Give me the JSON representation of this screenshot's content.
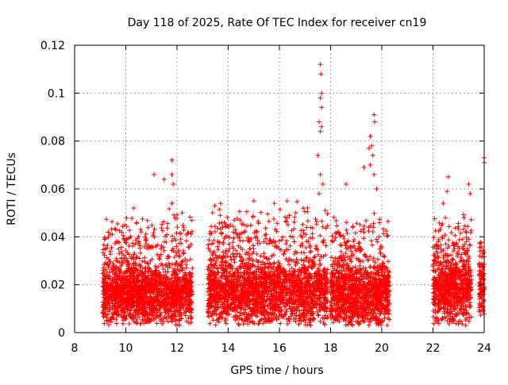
{
  "chart_data": {
    "type": "scatter",
    "title": "Day 118 of 2025, Rate Of TEC Index for receiver cn19",
    "xlabel": "GPS time / hours",
    "ylabel": "ROTI / TECUs",
    "xlim": [
      8,
      24
    ],
    "ylim": [
      0,
      0.12
    ],
    "xticks": [
      8,
      10,
      12,
      14,
      16,
      18,
      20,
      22,
      24
    ],
    "xtick_labels": [
      "8",
      "10",
      "12",
      "14",
      "16",
      "18",
      "20",
      "22",
      "24"
    ],
    "yticks": [
      0,
      0.02,
      0.04,
      0.06,
      0.08,
      0.1,
      0.12
    ],
    "ytick_labels": [
      "0",
      "0.02",
      "0.04",
      "0.06",
      "0.08",
      "0.1",
      "0.12"
    ],
    "grid": true,
    "marker": "+",
    "color": "#ff0000",
    "segments": [
      {
        "start": 9.1,
        "end": 12.6,
        "base": 0.016,
        "spread": 0.012,
        "peak": 0.052
      },
      {
        "start": 13.2,
        "end": 17.9,
        "base": 0.017,
        "spread": 0.013,
        "peak": 0.055
      },
      {
        "start": 18.0,
        "end": 20.3,
        "base": 0.016,
        "spread": 0.013,
        "peak": 0.05
      },
      {
        "start": 22.0,
        "end": 23.5,
        "base": 0.018,
        "spread": 0.014,
        "peak": 0.052
      },
      {
        "start": 23.8,
        "end": 24.0,
        "base": 0.018,
        "spread": 0.012,
        "peak": 0.045
      }
    ],
    "highlights": [
      {
        "x": 10.3,
        "y": 0.052
      },
      {
        "x": 10.6,
        "y": 0.042
      },
      {
        "x": 11.1,
        "y": 0.066
      },
      {
        "x": 11.5,
        "y": 0.064
      },
      {
        "x": 11.8,
        "y": 0.072
      },
      {
        "x": 11.8,
        "y": 0.066
      },
      {
        "x": 11.85,
        "y": 0.062
      },
      {
        "x": 11.8,
        "y": 0.054
      },
      {
        "x": 12.2,
        "y": 0.05
      },
      {
        "x": 13.7,
        "y": 0.054
      },
      {
        "x": 15.0,
        "y": 0.055
      },
      {
        "x": 15.8,
        "y": 0.054
      },
      {
        "x": 16.3,
        "y": 0.055
      },
      {
        "x": 17.6,
        "y": 0.112
      },
      {
        "x": 17.62,
        "y": 0.108
      },
      {
        "x": 17.65,
        "y": 0.1
      },
      {
        "x": 17.6,
        "y": 0.098
      },
      {
        "x": 17.65,
        "y": 0.094
      },
      {
        "x": 17.55,
        "y": 0.088
      },
      {
        "x": 17.65,
        "y": 0.086
      },
      {
        "x": 17.6,
        "y": 0.084
      },
      {
        "x": 17.5,
        "y": 0.074
      },
      {
        "x": 17.6,
        "y": 0.066
      },
      {
        "x": 17.7,
        "y": 0.062
      },
      {
        "x": 17.55,
        "y": 0.058
      },
      {
        "x": 18.6,
        "y": 0.062
      },
      {
        "x": 19.3,
        "y": 0.069
      },
      {
        "x": 19.5,
        "y": 0.077
      },
      {
        "x": 19.55,
        "y": 0.082
      },
      {
        "x": 19.6,
        "y": 0.078
      },
      {
        "x": 19.65,
        "y": 0.074
      },
      {
        "x": 19.7,
        "y": 0.091
      },
      {
        "x": 19.72,
        "y": 0.088
      },
      {
        "x": 19.55,
        "y": 0.07
      },
      {
        "x": 19.7,
        "y": 0.066
      },
      {
        "x": 19.8,
        "y": 0.06
      },
      {
        "x": 22.6,
        "y": 0.065
      },
      {
        "x": 22.55,
        "y": 0.059
      },
      {
        "x": 22.4,
        "y": 0.054
      },
      {
        "x": 23.4,
        "y": 0.062
      },
      {
        "x": 23.45,
        "y": 0.058
      },
      {
        "x": 24.0,
        "y": 0.073
      },
      {
        "x": 24.0,
        "y": 0.071
      }
    ]
  }
}
